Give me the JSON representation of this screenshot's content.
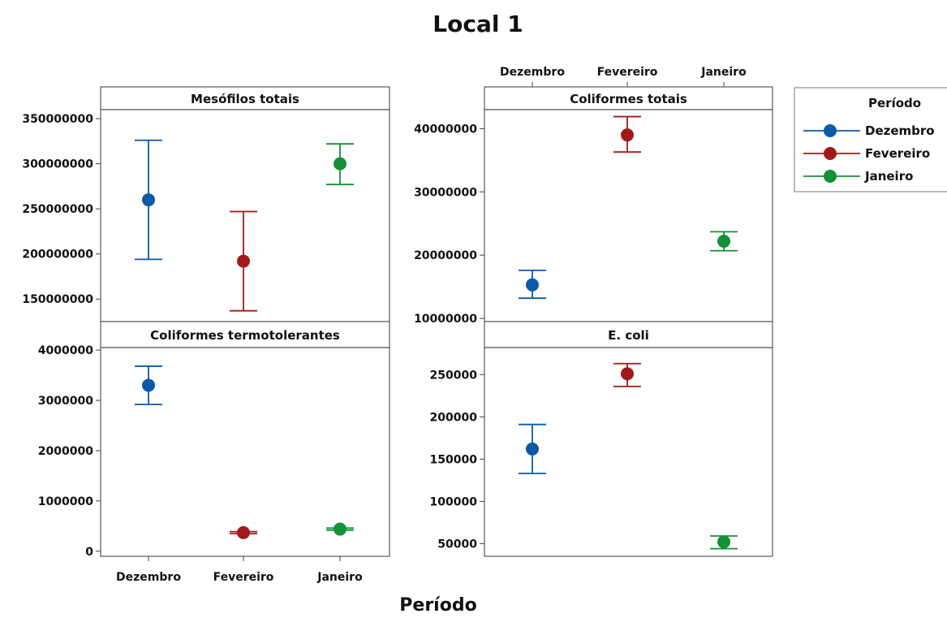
{
  "title": "Local 1",
  "xlabel": "Período",
  "legend": {
    "title": "Período",
    "entries": [
      {
        "label": "Dezembro",
        "color": "#0b5aa8"
      },
      {
        "label": "Fevereiro",
        "color": "#a11a1a"
      },
      {
        "label": "Janeiro",
        "color": "#149035"
      }
    ]
  },
  "chart_data": {
    "type": "interval-plot",
    "categories": [
      "Dezembro",
      "Fevereiro",
      "Janeiro"
    ],
    "colors": [
      "#0b5aa8",
      "#a11a1a",
      "#149035"
    ],
    "panels": [
      {
        "title": "Mesófilos totais",
        "ylim": [
          125000000,
          360000000
        ],
        "yticks": [
          150000000,
          200000000,
          250000000,
          300000000,
          350000000
        ],
        "ytick_labels": [
          "150000000",
          "200000000",
          "250000000",
          "300000000",
          "350000000"
        ],
        "means": [
          260000000,
          192000000,
          300000000
        ],
        "lower": [
          194000000,
          137000000,
          277000000
        ],
        "upper": [
          326000000,
          247000000,
          322000000
        ]
      },
      {
        "title": "Coliformes totais",
        "ylim": [
          9500000,
          43000000
        ],
        "yticks": [
          10000000,
          20000000,
          30000000,
          40000000
        ],
        "ytick_labels": [
          "10000000",
          "20000000",
          "30000000",
          "40000000"
        ],
        "means": [
          15300000,
          39000000,
          22200000
        ],
        "lower": [
          13200000,
          36300000,
          20700000
        ],
        "upper": [
          17600000,
          41900000,
          23700000
        ]
      },
      {
        "title": "Coliformes termotolerantes",
        "ylim": [
          -100000,
          4050000
        ],
        "yticks": [
          0,
          1000000,
          2000000,
          3000000,
          4000000
        ],
        "ytick_labels": [
          "0",
          "1000000",
          "2000000",
          "3000000",
          "4000000"
        ],
        "means": [
          3300000,
          370000,
          440000
        ],
        "lower": [
          2920000,
          350000,
          420000
        ],
        "upper": [
          3680000,
          390000,
          460000
        ]
      },
      {
        "title": "E. coli",
        "ylim": [
          35000,
          282000
        ],
        "yticks": [
          50000,
          100000,
          150000,
          200000,
          250000
        ],
        "ytick_labels": [
          "50000",
          "100000",
          "150000",
          "200000",
          "250000"
        ],
        "means": [
          162000,
          251000,
          52000
        ],
        "lower": [
          133000,
          236000,
          44000
        ],
        "upper": [
          191000,
          263000,
          59000
        ]
      }
    ]
  }
}
